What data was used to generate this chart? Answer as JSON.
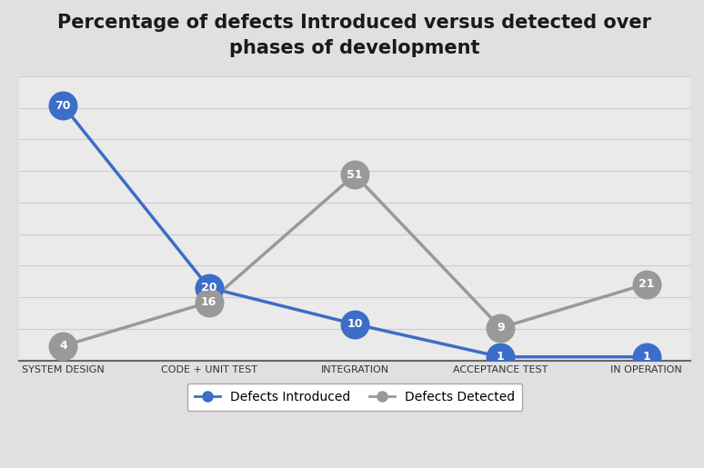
{
  "title": "Percentage of defects Introduced versus detected over\nphases of development",
  "categories": [
    "SYSTEM DESIGN",
    "CODE + UNIT TEST",
    "INTEGRATION",
    "ACCEPTANCE TEST",
    "IN OPERATION"
  ],
  "introduced": [
    70,
    20,
    10,
    1,
    1
  ],
  "detected": [
    4,
    16,
    51,
    9,
    21
  ],
  "introduced_labels": [
    "70",
    "20",
    "10",
    "1",
    "1"
  ],
  "detected_labels": [
    "4",
    "16",
    "51",
    "9",
    "21"
  ],
  "introduced_color": "#3C6DC8",
  "detected_color": "#999999",
  "background_top": "#D8D8D8",
  "background_bottom": "#F5F5F5",
  "plot_bg_top": "#C8C8C8",
  "plot_bg_bottom": "#F0F0F0",
  "title_fontsize": 15,
  "label_fontsize": 9,
  "tick_fontsize": 8,
  "legend_fontsize": 10,
  "ylim": [
    0,
    78
  ],
  "grid_color": "#CCCCCC",
  "marker_size": 22,
  "line_width": 2.5
}
